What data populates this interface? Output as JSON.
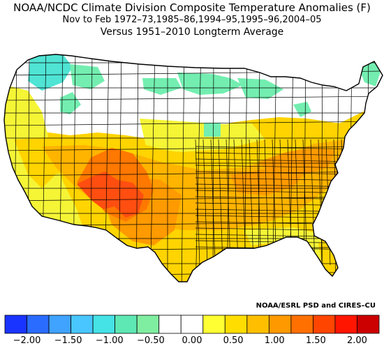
{
  "header": {
    "title": "NOAA/NCDC Climate Division Composite Temperature Anomalies (F)",
    "subtitle": "Nov to Feb  1972–73,1985–86,1994–95,1995–96,2004–05",
    "baseline": "Versus 1951–2010 Longterm Average"
  },
  "credit": "NOAA/ESRL PSD and CIRES–CU",
  "legend": {
    "tick_labels": [
      "−2.00",
      "−1.50",
      "−1.00",
      "−0.50",
      "0.00",
      "0.50",
      "1.00",
      "1.50",
      "2.00"
    ],
    "colors": [
      "#1a34ff",
      "#2a6cff",
      "#3fa3ff",
      "#49c6ff",
      "#45e2e6",
      "#5ee8b4",
      "#80eea0",
      "#ffffff",
      "#ffffff",
      "#ffff33",
      "#ffdd00",
      "#ffbf00",
      "#ff9900",
      "#ff7000",
      "#ff4500",
      "#ff1500",
      "#cc0000"
    ]
  },
  "map": {
    "colors": {
      "white": "#ffffff",
      "teal": "#73eeb0",
      "cyan": "#4fe4d4",
      "yellow": "#f5f536",
      "gold": "#ffd400",
      "amber": "#ffb400",
      "orange": "#ff9a00",
      "darkorange": "#ff7800",
      "red": "#ff4e10"
    }
  }
}
